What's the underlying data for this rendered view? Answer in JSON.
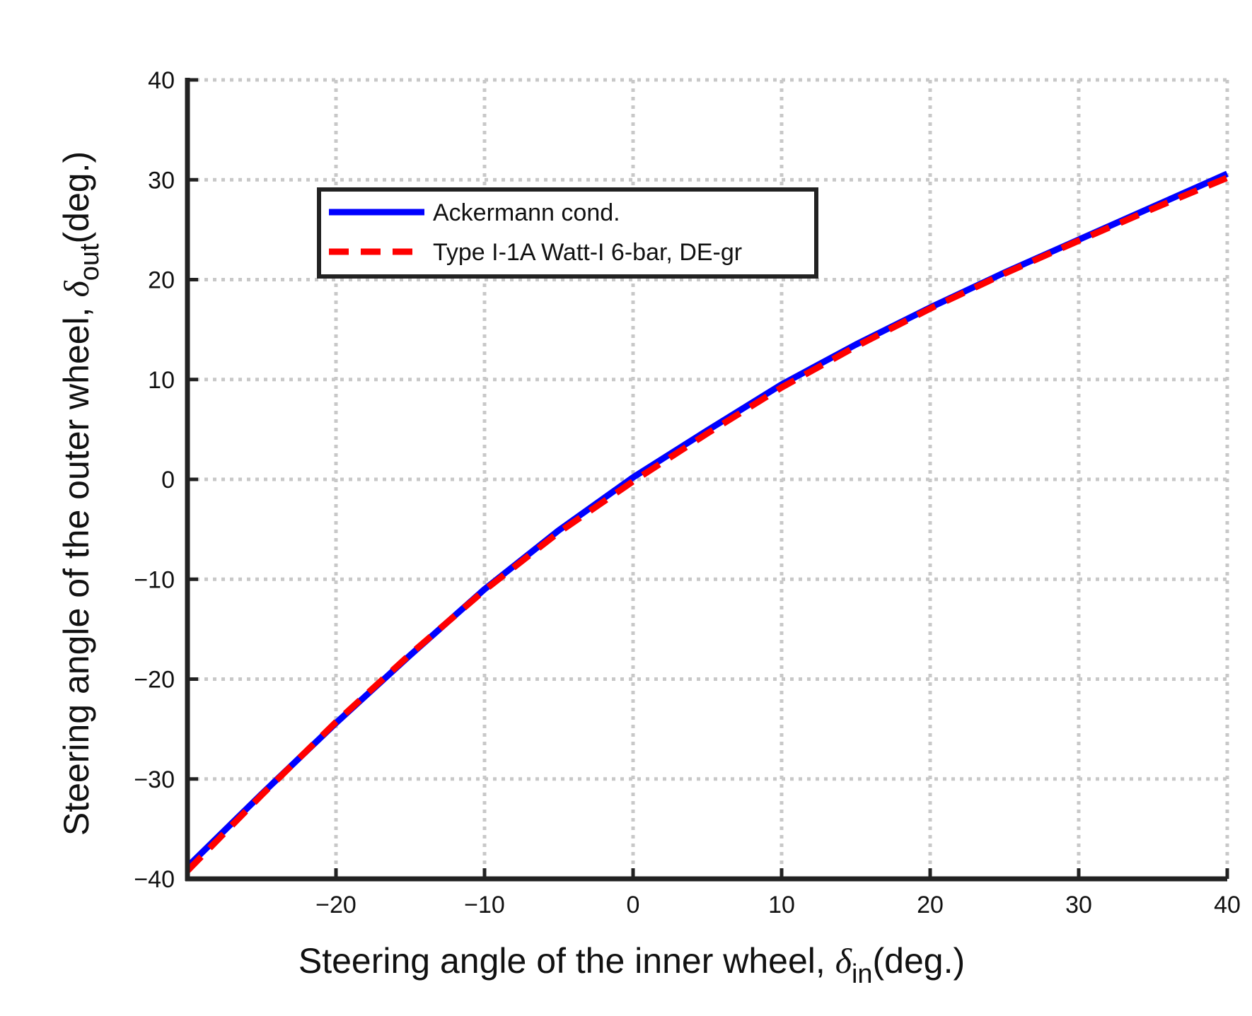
{
  "chart_data": {
    "type": "line",
    "xlabel": {
      "main": "Steering angle of the inner wheel, ",
      "symbol": "δ",
      "subscript": "in",
      "suffix": "(deg.)"
    },
    "ylabel": {
      "main": "Steering angle of the outer wheel, ",
      "symbol": "δ",
      "subscript": "out",
      "suffix": "(deg.)"
    },
    "xlim": [
      -30,
      40
    ],
    "ylim": [
      -40,
      40
    ],
    "xticks": [
      -20,
      -10,
      0,
      10,
      20,
      30,
      40
    ],
    "xtick_labels": [
      "−20",
      "−10",
      "0",
      "10",
      "20",
      "30",
      "40"
    ],
    "yticks": [
      -40,
      -30,
      -20,
      -10,
      0,
      10,
      20,
      30,
      40
    ],
    "ytick_labels": [
      "−40",
      "−30",
      "−20",
      "−10",
      "0",
      "10",
      "20",
      "30",
      "40"
    ],
    "grid": true,
    "legend_position": "upper-left",
    "series": [
      {
        "name": "Ackermann cond.",
        "color": "#0000ff",
        "style": "solid",
        "x": [
          -30,
          -25,
          -20,
          -15,
          -10,
          -5,
          0,
          5,
          10,
          15,
          20,
          25,
          30,
          35,
          40
        ],
        "y": [
          -38.8,
          -31.5,
          -24.4,
          -17.6,
          -11.0,
          -5.1,
          0.2,
          4.9,
          9.5,
          13.5,
          17.2,
          20.7,
          24.0,
          27.3,
          30.6
        ]
      },
      {
        "name": "Type I-1A Watt-I 6-bar, DE-gr",
        "color": "#ff0000",
        "style": "dashed",
        "x": [
          -30,
          -25,
          -20,
          -15,
          -10,
          -5,
          0,
          5,
          10,
          15,
          20,
          25,
          30,
          35,
          40
        ],
        "y": [
          -39.2,
          -31.6,
          -24.3,
          -17.5,
          -11.1,
          -5.3,
          -0.2,
          4.6,
          9.2,
          13.3,
          17.1,
          20.6,
          23.9,
          27.1,
          30.2
        ]
      }
    ]
  }
}
